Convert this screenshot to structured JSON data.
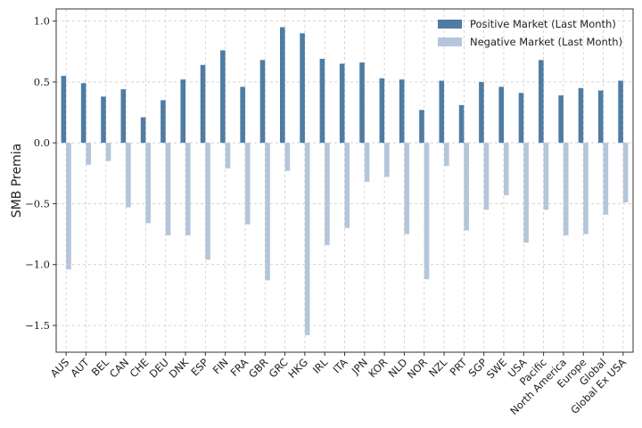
{
  "chart_data": {
    "type": "bar",
    "ylabel": "SMB Premia",
    "xlabel": "",
    "title": "",
    "ylim": [
      -1.72,
      1.1
    ],
    "yticks": [
      1.0,
      0.5,
      0.0,
      -0.5,
      -1.0,
      -1.5
    ],
    "ytick_labels": [
      "1.0",
      "0.5",
      "0.0",
      "−0.5",
      "−1.0",
      "−1.5"
    ],
    "grid": true,
    "legend_position": "top-right",
    "categories": [
      "AUS",
      "AUT",
      "BEL",
      "CAN",
      "CHE",
      "DEU",
      "DNK",
      "ESP",
      "FIN",
      "FRA",
      "GBR",
      "GRC",
      "HKG",
      "IRL",
      "ITA",
      "JPN",
      "KOR",
      "NLD",
      "NOR",
      "NZL",
      "PRT",
      "SGP",
      "SWE",
      "USA",
      "Pacific",
      "North America",
      "Europe",
      "Global",
      "Global Ex USA"
    ],
    "series": [
      {
        "name": "Positive Market (Last Month)",
        "color": "#4f7ca3",
        "values": [
          0.55,
          0.49,
          0.38,
          0.44,
          0.21,
          0.35,
          0.52,
          0.64,
          0.76,
          0.46,
          0.68,
          0.95,
          0.9,
          0.69,
          0.65,
          0.66,
          0.53,
          0.52,
          0.27,
          0.51,
          0.31,
          0.5,
          0.46,
          0.41,
          0.68,
          0.39,
          0.45,
          0.43,
          0.51
        ]
      },
      {
        "name": "Negative Market (Last Month)",
        "color": "#b5c6db",
        "values": [
          -1.04,
          -0.18,
          -0.15,
          -0.53,
          -0.66,
          -0.76,
          -0.76,
          -0.96,
          -0.21,
          -0.67,
          -1.13,
          -0.23,
          -1.58,
          -0.84,
          -0.7,
          -0.32,
          -0.28,
          -0.75,
          -1.12,
          -0.19,
          -0.72,
          -0.55,
          -0.43,
          -0.82,
          -0.55,
          -0.76,
          -0.75,
          -0.59,
          -0.49
        ]
      }
    ]
  }
}
